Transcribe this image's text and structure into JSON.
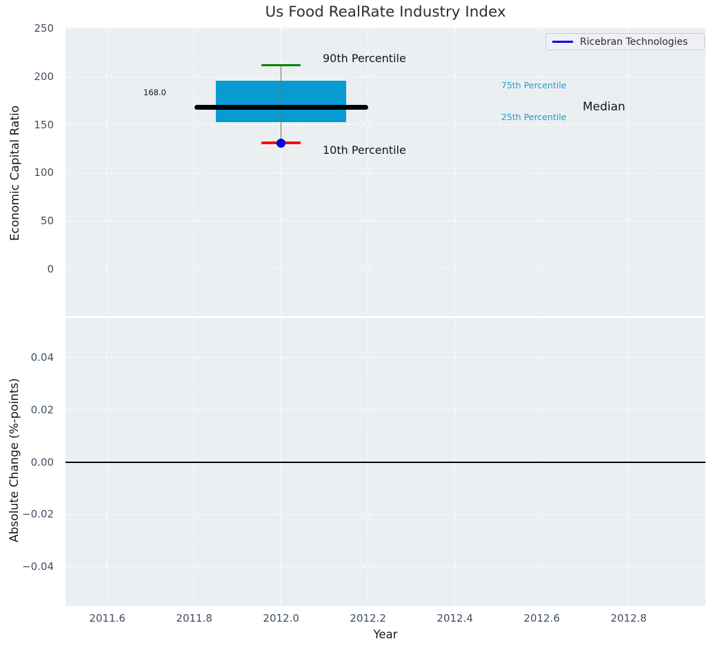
{
  "title": "Us Food RealRate Industry Index",
  "legend": {
    "label": "Ricebran Technologies"
  },
  "colors": {
    "axes_bg": "#eceff1",
    "grid": "#ffffff",
    "tick_text": "#3e4d63",
    "box_fill": "#069cd1",
    "median": "#000000",
    "whisker": "#707070",
    "cap_top": "#008000",
    "cap_bottom": "#ff0000",
    "marker": "#0000ff",
    "legend_line": "#0000e0",
    "percentile_text": "#1b9cd0",
    "zero_line": "#000000"
  },
  "top_chart": {
    "ylabel": "Economic Capital Ratio",
    "ytick_labels": [
      "250",
      "200",
      "150",
      "100",
      "50",
      "0"
    ],
    "annotations": {
      "p90_label": "90th Percentile",
      "p10_label": "10th Percentile",
      "p75_label": "75th Percentile",
      "p25_label": "25th Percentile",
      "median_label": "Median",
      "median_value": "168.0"
    }
  },
  "bottom_chart": {
    "ylabel": "Absolute Change (%-points)",
    "ytick_labels": [
      "0.04",
      "0.02",
      "0.00",
      "−0.02",
      "−0.04"
    ]
  },
  "x_axis": {
    "label": "Year",
    "tick_labels": [
      "2011.6",
      "2011.8",
      "2012.0",
      "2012.2",
      "2012.4",
      "2012.6",
      "2012.8"
    ]
  },
  "chart_data": [
    {
      "type": "box",
      "title": "Us Food RealRate Industry Index",
      "xlabel": "Year",
      "ylabel": "Economic Capital Ratio",
      "x_center": 2012.0,
      "box": {
        "p10": 131,
        "p25": 153,
        "median": 168,
        "p75": 196,
        "p90": 212
      },
      "median_value_label": 168.0,
      "box_half_width": 0.15,
      "median_half_width": 0.2,
      "cap_half_width": 0.045,
      "series": [
        {
          "name": "Ricebran Technologies",
          "x": [
            2012.0
          ],
          "values": [
            131
          ],
          "marker": "circle"
        }
      ],
      "xticks": [
        2011.6,
        2011.8,
        2012.0,
        2012.2,
        2012.4,
        2012.6,
        2012.8
      ],
      "yticks": [
        250,
        200,
        150,
        100,
        50,
        0
      ],
      "xlim": [
        2011.5037,
        2012.9767
      ],
      "ylim": [
        -49,
        251
      ],
      "grid": true,
      "legend_position": "upper right"
    },
    {
      "type": "line",
      "xlabel": "Year",
      "ylabel": "Absolute Change (%-points)",
      "yticks": [
        0.04,
        0.02,
        0.0,
        -0.02,
        -0.04
      ],
      "ylim": [
        -0.055,
        0.055
      ],
      "xlim": [
        2011.5037,
        2012.9767
      ],
      "zero_line": 0.0,
      "series": [],
      "grid": true
    }
  ]
}
